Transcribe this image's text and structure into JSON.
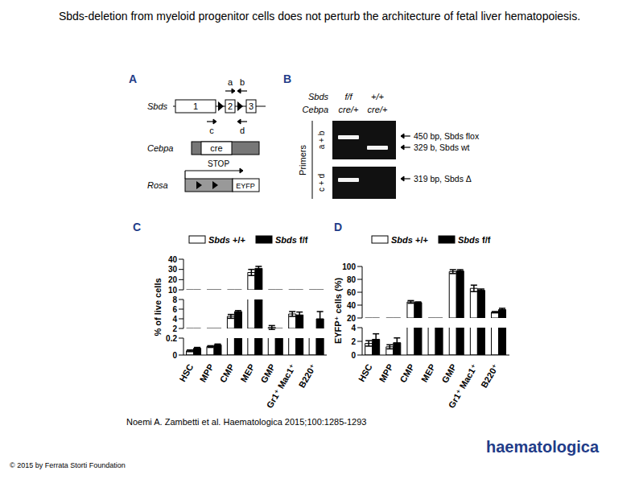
{
  "title": "Sbds-deletion from myeloid progenitor cells does not perturb the architecture of fetal liver hematopoiesis.",
  "panel_A": {
    "label": "A",
    "sbds": "Sbds",
    "exons": [
      "1",
      "2",
      "3"
    ],
    "primers": [
      "a",
      "b",
      "c",
      "d"
    ],
    "cebpa": "Cebpa",
    "cre": "cre",
    "rosa": "Rosa",
    "stop": "STOP",
    "eyfp": "EYFP"
  },
  "panel_B": {
    "label": "B",
    "row_labels": [
      "Sbds",
      "Cebpa"
    ],
    "lanes": [
      [
        "f/f",
        "cre/+"
      ],
      [
        "+/+",
        "cre/+"
      ]
    ],
    "axis_label": "Primers",
    "gels": [
      {
        "primers": "a + b",
        "bands": [
          "450 bp, Sbds flox",
          "329 b, Sbds wt"
        ]
      },
      {
        "primers": "c + d",
        "bands": [
          "319 bp, Sbds Δ"
        ]
      }
    ]
  },
  "chart_data": [
    {
      "type": "bar",
      "label": "C",
      "y_label": "% of live cells",
      "categories": [
        "HSC",
        "MPP",
        "CMP",
        "MEP",
        "GMP",
        "Gr1⁺ Mac1⁺",
        "B220⁺"
      ],
      "series": [
        {
          "name": "Sbds +/+",
          "color": "#ffffff",
          "values": [
            0.05,
            0.1,
            4.5,
            27,
            2.2,
            5.0,
            2.0
          ],
          "errors": [
            0.01,
            0.01,
            0.4,
            3,
            0.4,
            0.5,
            0.3
          ]
        },
        {
          "name": "Sbds f/f",
          "color": "#000000",
          "values": [
            0.08,
            0.12,
            5.5,
            31,
            1.9,
            4.8,
            4.0
          ],
          "errors": [
            0.01,
            0.01,
            0.2,
            2,
            0.2,
            0.6,
            1.5
          ]
        }
      ],
      "ylim": [
        0,
        40
      ],
      "yticks": [
        0,
        0.2,
        2,
        4,
        6,
        8,
        10,
        20,
        30,
        40
      ],
      "axis_segments": [
        [
          0,
          0.2
        ],
        [
          2,
          8
        ],
        [
          10,
          40
        ]
      ]
    },
    {
      "type": "bar",
      "label": "D",
      "y_label": "EYFP⁺ cells (%)",
      "categories": [
        "HSC",
        "MPP",
        "CMP",
        "MEP",
        "GMP",
        "Gr1⁺ Mac1⁺",
        "B220⁺"
      ],
      "series": [
        {
          "name": "Sbds +/+",
          "color": "#ffffff",
          "values": [
            1.7,
            1.2,
            45,
            19,
            92,
            66,
            29
          ],
          "errors": [
            0.4,
            0.3,
            2,
            1,
            3,
            5,
            1
          ]
        },
        {
          "name": "Sbds f/f",
          "color": "#000000",
          "values": [
            2.3,
            1.8,
            44,
            17,
            93,
            63,
            33
          ],
          "errors": [
            0.8,
            0.7,
            1,
            1,
            2,
            2,
            2
          ]
        }
      ],
      "ylim": [
        0,
        100
      ],
      "yticks": [
        0,
        2,
        4,
        20,
        40,
        60,
        80,
        100
      ],
      "axis_segments": [
        [
          0,
          4
        ],
        [
          20,
          100
        ]
      ]
    }
  ],
  "citation": "Noemi A. Zambetti et al. Haematologica 2015;100:1285-1293",
  "copyright": "© 2015 by Ferrata Storti Foundation",
  "journal": "haematologica"
}
